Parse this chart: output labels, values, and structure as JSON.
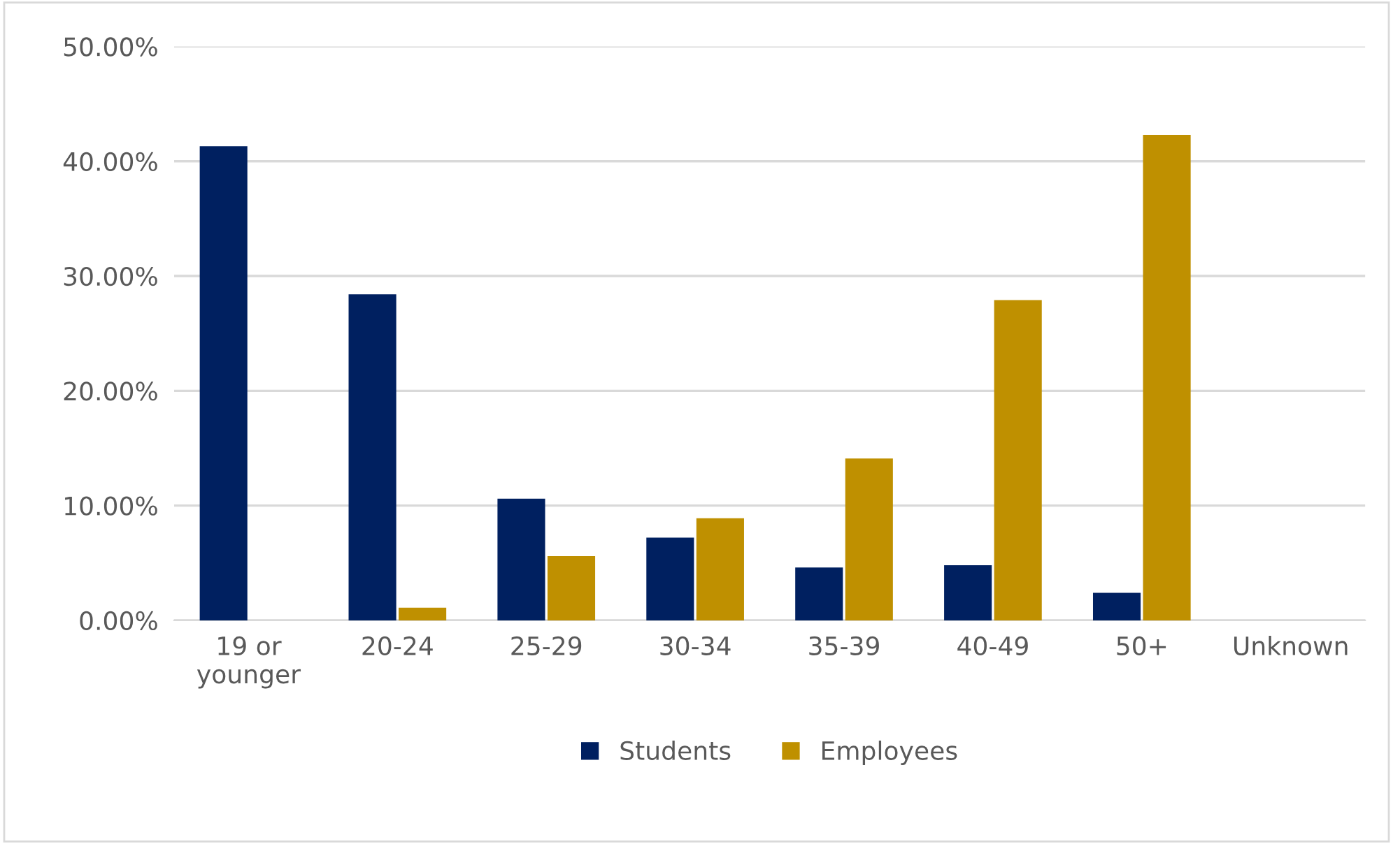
{
  "chart_data": {
    "type": "bar",
    "categories": [
      "19 or\nyounger",
      "20-24",
      "25-29",
      "30-34",
      "35-39",
      "40-49",
      "50+",
      "Unknown"
    ],
    "series": [
      {
        "name": "Students",
        "color": "#002060",
        "values": [
          41.3,
          28.4,
          10.6,
          7.2,
          4.6,
          4.8,
          2.4,
          0
        ]
      },
      {
        "name": "Employees",
        "color": "#bf9000",
        "values": [
          0,
          1.1,
          5.6,
          8.9,
          14.1,
          27.9,
          42.3,
          0
        ]
      }
    ],
    "ylim": [
      0,
      50
    ],
    "yticks": [
      {
        "value": 0,
        "label": "0.00%"
      },
      {
        "value": 10,
        "label": "10.00%"
      },
      {
        "value": 20,
        "label": "20.00%"
      },
      {
        "value": 30,
        "label": "30.00%"
      },
      {
        "value": 40,
        "label": "40.00%"
      },
      {
        "value": 50,
        "label": "50.00%"
      }
    ],
    "grid": "y",
    "legend": "bottom"
  }
}
